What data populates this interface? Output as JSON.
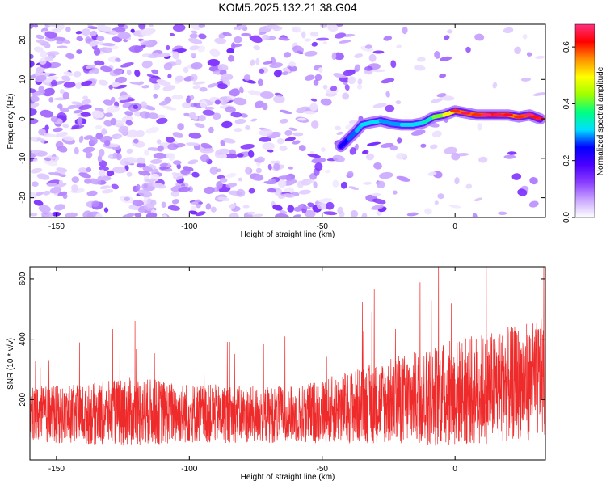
{
  "title": "KOM5.2025.132.21.38.G04",
  "chart_data": [
    {
      "type": "heatmap",
      "xlabel": "Height of straight line (km)",
      "ylabel": "Frequency (Hz)",
      "xlim": [
        -160,
        34
      ],
      "ylim": [
        -25,
        24
      ],
      "x_ticks": [
        -150,
        -100,
        -50,
        0
      ],
      "y_ticks": [
        -20,
        -10,
        0,
        10,
        20
      ],
      "x_tick_labels": [
        "-150",
        "-100",
        "-50",
        "0"
      ],
      "y_tick_labels": [
        "-20",
        "-10",
        "0",
        "10",
        "20"
      ],
      "colorbar": {
        "label": "Normalized spectral amplitude",
        "range": [
          0.0,
          0.68
        ],
        "ticks": [
          0.0,
          0.2,
          0.4,
          0.6
        ],
        "tick_labels": [
          "0.0",
          "0.2",
          "0.4",
          "0.6"
        ],
        "colormap": [
          "#ffffff",
          "#c9a6ff",
          "#8a3dff",
          "#4b00ff",
          "#0000ff",
          "#00e0ff",
          "#00ff80",
          "#a0ff00",
          "#ffff00",
          "#ff9000",
          "#ff0000",
          "#ff3080"
        ]
      },
      "signal_track": {
        "height_km": [
          -43,
          -40,
          -37,
          -35,
          -32,
          -28,
          -24,
          -20,
          -16,
          -12,
          -8,
          -4,
          0,
          4,
          8,
          12,
          16,
          20,
          24,
          28,
          32
        ],
        "frequency_hz": [
          -7,
          -5,
          -3,
          -1.5,
          -1,
          -0.5,
          -1.2,
          -1.5,
          -1.5,
          -1,
          0.5,
          1,
          2,
          1.5,
          1,
          1,
          1,
          1,
          0.5,
          1,
          0
        ],
        "amplitude": [
          0.22,
          0.25,
          0.3,
          0.3,
          0.32,
          0.3,
          0.28,
          0.3,
          0.32,
          0.3,
          0.38,
          0.45,
          0.55,
          0.6,
          0.55,
          0.62,
          0.6,
          0.58,
          0.55,
          0.62,
          0.6
        ]
      },
      "grid": false
    },
    {
      "type": "line",
      "xlabel": "Height of straight line (km)",
      "ylabel": "SNR (10 * v/v)",
      "xlim": [
        -160,
        34
      ],
      "ylim": [
        0,
        640
      ],
      "x_ticks": [
        -150,
        -100,
        -50,
        0
      ],
      "y_ticks": [
        200,
        400,
        600
      ],
      "x_tick_labels": [
        "-150",
        "-100",
        "-50",
        "0"
      ],
      "y_tick_labels": [
        "200",
        "400",
        "600"
      ],
      "line_color": "#ee2a2a",
      "envelope": {
        "height_km": [
          -160,
          -140,
          -120,
          -100,
          -80,
          -60,
          -40,
          -20,
          0,
          20,
          34
        ],
        "baseline_snr": [
          150,
          150,
          160,
          155,
          150,
          150,
          175,
          200,
          220,
          250,
          270
        ],
        "spread_snr": [
          95,
          100,
          115,
          100,
          95,
          95,
          120,
          150,
          180,
          190,
          200
        ]
      },
      "grid": false
    }
  ]
}
